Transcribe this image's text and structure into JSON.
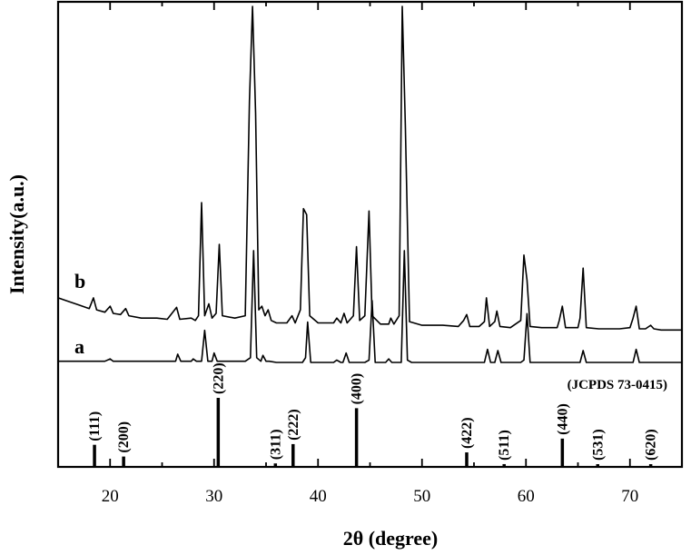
{
  "chart_data": {
    "type": "line",
    "xlabel": "2θ (degree)",
    "ylabel": "Intensity(a.u.)",
    "xlim": [
      15,
      75
    ],
    "xticks": [
      20,
      30,
      40,
      50,
      60,
      70
    ],
    "y_ticks_shown": false,
    "series": [
      {
        "name": "b",
        "points": [
          [
            15.0,
            0.55
          ],
          [
            16.0,
            0.52
          ],
          [
            17.0,
            0.49
          ],
          [
            18.0,
            0.46
          ],
          [
            18.4,
            0.55
          ],
          [
            18.7,
            0.45
          ],
          [
            19.5,
            0.43
          ],
          [
            20.0,
            0.48
          ],
          [
            20.3,
            0.42
          ],
          [
            21.0,
            0.41
          ],
          [
            21.5,
            0.46
          ],
          [
            21.8,
            0.4
          ],
          [
            23.0,
            0.38
          ],
          [
            24.5,
            0.38
          ],
          [
            25.5,
            0.37
          ],
          [
            26.4,
            0.47
          ],
          [
            26.7,
            0.37
          ],
          [
            27.8,
            0.38
          ],
          [
            28.2,
            0.36
          ],
          [
            28.5,
            0.4
          ],
          [
            28.8,
            1.35
          ],
          [
            29.1,
            0.4
          ],
          [
            29.5,
            0.5
          ],
          [
            29.8,
            0.38
          ],
          [
            30.2,
            0.42
          ],
          [
            30.5,
            1.0
          ],
          [
            30.8,
            0.4
          ],
          [
            32.0,
            0.38
          ],
          [
            33.0,
            0.4
          ],
          [
            33.4,
            2.2
          ],
          [
            33.7,
            3.0
          ],
          [
            34.0,
            2.1
          ],
          [
            34.3,
            0.45
          ],
          [
            34.6,
            0.48
          ],
          [
            34.9,
            0.4
          ],
          [
            35.2,
            0.45
          ],
          [
            35.5,
            0.36
          ],
          [
            36.0,
            0.34
          ],
          [
            37.0,
            0.34
          ],
          [
            37.5,
            0.4
          ],
          [
            37.8,
            0.34
          ],
          [
            38.3,
            0.45
          ],
          [
            38.6,
            1.3
          ],
          [
            38.9,
            1.25
          ],
          [
            39.2,
            0.4
          ],
          [
            40.0,
            0.34
          ],
          [
            41.5,
            0.34
          ],
          [
            41.8,
            0.38
          ],
          [
            42.2,
            0.34
          ],
          [
            42.5,
            0.42
          ],
          [
            42.8,
            0.34
          ],
          [
            43.4,
            0.4
          ],
          [
            43.7,
            0.98
          ],
          [
            44.0,
            0.36
          ],
          [
            44.5,
            0.4
          ],
          [
            44.9,
            1.28
          ],
          [
            45.2,
            0.4
          ],
          [
            46.0,
            0.33
          ],
          [
            46.8,
            0.33
          ],
          [
            47.0,
            0.38
          ],
          [
            47.3,
            0.33
          ],
          [
            47.8,
            0.4
          ],
          [
            48.1,
            3.0
          ],
          [
            48.4,
            2.0
          ],
          [
            48.8,
            0.35
          ],
          [
            50.0,
            0.32
          ],
          [
            52.0,
            0.32
          ],
          [
            53.5,
            0.31
          ],
          [
            54.0,
            0.36
          ],
          [
            54.3,
            0.41
          ],
          [
            54.6,
            0.31
          ],
          [
            55.5,
            0.31
          ],
          [
            56.0,
            0.35
          ],
          [
            56.2,
            0.55
          ],
          [
            56.5,
            0.31
          ],
          [
            57.0,
            0.35
          ],
          [
            57.2,
            0.44
          ],
          [
            57.5,
            0.31
          ],
          [
            58.5,
            0.3
          ],
          [
            59.5,
            0.36
          ],
          [
            59.8,
            0.91
          ],
          [
            60.1,
            0.7
          ],
          [
            60.4,
            0.31
          ],
          [
            61.5,
            0.3
          ],
          [
            63.0,
            0.3
          ],
          [
            63.2,
            0.36
          ],
          [
            63.5,
            0.48
          ],
          [
            63.8,
            0.3
          ],
          [
            65.0,
            0.3
          ],
          [
            65.2,
            0.38
          ],
          [
            65.5,
            0.8
          ],
          [
            65.8,
            0.3
          ],
          [
            67.0,
            0.29
          ],
          [
            69.0,
            0.29
          ],
          [
            70.0,
            0.3
          ],
          [
            70.3,
            0.38
          ],
          [
            70.6,
            0.48
          ],
          [
            70.9,
            0.29
          ],
          [
            71.5,
            0.29
          ],
          [
            72.0,
            0.32
          ],
          [
            72.3,
            0.29
          ],
          [
            73.0,
            0.28
          ],
          [
            75.0,
            0.28
          ]
        ]
      },
      {
        "name": "a",
        "points": [
          [
            15.0,
            0.17
          ],
          [
            17.0,
            0.17
          ],
          [
            19.5,
            0.17
          ],
          [
            20.0,
            0.19
          ],
          [
            20.3,
            0.17
          ],
          [
            22.0,
            0.17
          ],
          [
            25.0,
            0.17
          ],
          [
            26.3,
            0.17
          ],
          [
            26.5,
            0.23
          ],
          [
            26.8,
            0.17
          ],
          [
            27.8,
            0.17
          ],
          [
            28.0,
            0.19
          ],
          [
            28.3,
            0.17
          ],
          [
            28.8,
            0.17
          ],
          [
            29.1,
            0.43
          ],
          [
            29.4,
            0.17
          ],
          [
            29.8,
            0.17
          ],
          [
            30.0,
            0.24
          ],
          [
            30.3,
            0.17
          ],
          [
            33.0,
            0.17
          ],
          [
            33.5,
            0.2
          ],
          [
            33.8,
            1.1
          ],
          [
            34.1,
            0.2
          ],
          [
            34.5,
            0.17
          ],
          [
            34.7,
            0.22
          ],
          [
            35.0,
            0.17
          ],
          [
            35.3,
            0.17
          ],
          [
            36.0,
            0.16
          ],
          [
            38.5,
            0.16
          ],
          [
            38.8,
            0.2
          ],
          [
            39.0,
            0.5
          ],
          [
            39.3,
            0.16
          ],
          [
            41.5,
            0.16
          ],
          [
            41.8,
            0.18
          ],
          [
            42.2,
            0.16
          ],
          [
            42.4,
            0.16
          ],
          [
            42.7,
            0.24
          ],
          [
            43.0,
            0.16
          ],
          [
            44.5,
            0.16
          ],
          [
            44.9,
            0.18
          ],
          [
            45.2,
            0.68
          ],
          [
            45.5,
            0.16
          ],
          [
            46.5,
            0.16
          ],
          [
            46.8,
            0.19
          ],
          [
            47.1,
            0.16
          ],
          [
            48.0,
            0.16
          ],
          [
            48.3,
            1.1
          ],
          [
            48.6,
            0.18
          ],
          [
            49.0,
            0.16
          ],
          [
            53.0,
            0.16
          ],
          [
            56.0,
            0.16
          ],
          [
            56.3,
            0.27
          ],
          [
            56.6,
            0.16
          ],
          [
            57.0,
            0.16
          ],
          [
            57.3,
            0.26
          ],
          [
            57.6,
            0.16
          ],
          [
            59.5,
            0.16
          ],
          [
            59.8,
            0.18
          ],
          [
            60.1,
            0.57
          ],
          [
            60.4,
            0.16
          ],
          [
            62.5,
            0.16
          ],
          [
            65.2,
            0.16
          ],
          [
            65.5,
            0.26
          ],
          [
            65.8,
            0.16
          ],
          [
            68.0,
            0.16
          ],
          [
            70.3,
            0.16
          ],
          [
            70.6,
            0.27
          ],
          [
            70.9,
            0.16
          ],
          [
            73.0,
            0.16
          ],
          [
            75.0,
            0.16
          ]
        ]
      }
    ],
    "series_labels": [
      "b",
      "a"
    ],
    "reference": {
      "label": "(JCPDS 73-0415)",
      "peaks": [
        {
          "x": 18.5,
          "hkl": "(111)",
          "intensity": 0.32
        },
        {
          "x": 21.3,
          "hkl": "(200)",
          "intensity": 0.15
        },
        {
          "x": 30.4,
          "hkl": "(220)",
          "intensity": 1.0
        },
        {
          "x": 35.9,
          "hkl": "(311)",
          "intensity": 0.05
        },
        {
          "x": 37.6,
          "hkl": "(222)",
          "intensity": 0.33
        },
        {
          "x": 43.7,
          "hkl": "(400)",
          "intensity": 0.85
        },
        {
          "x": 54.3,
          "hkl": "(422)",
          "intensity": 0.21
        },
        {
          "x": 57.9,
          "hkl": "(511)",
          "intensity": 0.04
        },
        {
          "x": 63.5,
          "hkl": "(440)",
          "intensity": 0.41
        },
        {
          "x": 66.9,
          "hkl": "(531)",
          "intensity": 0.03
        },
        {
          "x": 72.0,
          "hkl": "(620)",
          "intensity": 0.03
        }
      ]
    }
  }
}
